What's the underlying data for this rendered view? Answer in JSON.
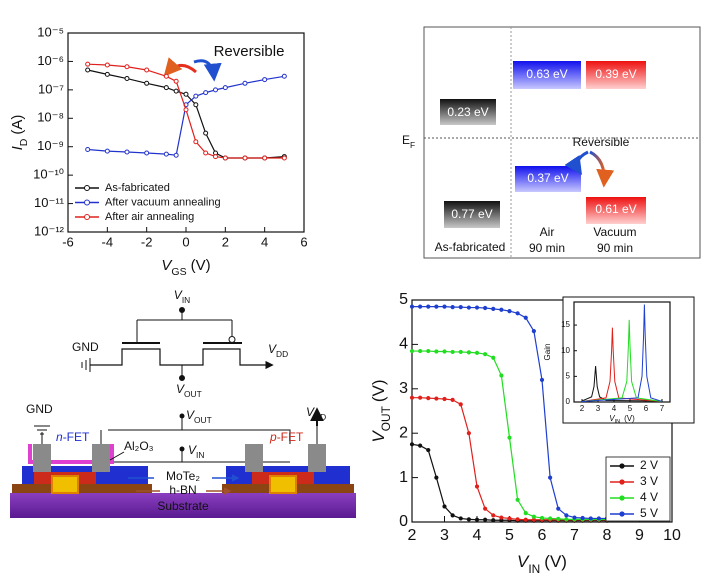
{
  "chart_data": [
    {
      "type": "line",
      "annotation": "Reversible",
      "xlabel": {
        "symbol": "V",
        "subscript": "GS",
        "unit": "(V)"
      },
      "ylabel": {
        "symbol": "I",
        "subscript": "D",
        "unit": "(A)"
      },
      "x": [
        -5,
        -4,
        -3,
        -2,
        -1,
        -0.5,
        0,
        0.5,
        1,
        1.5,
        2,
        3,
        4,
        5
      ],
      "series": [
        {
          "name": "As-fabricated",
          "color": "#111111",
          "values": [
            5e-07,
            3.5e-07,
            2.5e-07,
            1.7e-07,
            1.2e-07,
            9e-08,
            7e-08,
            3e-08,
            3e-09,
            6e-10,
            4e-10,
            4e-10,
            4e-10,
            4.5e-10
          ]
        },
        {
          "name": "After vacuum annealing",
          "color": "#2233cc",
          "values": [
            8e-10,
            7e-10,
            6.5e-10,
            6e-10,
            5.5e-10,
            5e-10,
            3e-08,
            6e-08,
            8e-08,
            1e-07,
            1.2e-07,
            1.7e-07,
            2.3e-07,
            3e-07
          ]
        },
        {
          "name": "After air annealing",
          "color": "#e0201b",
          "values": [
            8e-07,
            7.5e-07,
            6.5e-07,
            5e-07,
            3e-07,
            2e-07,
            2e-08,
            1.5e-09,
            6e-10,
            4.5e-10,
            4e-10,
            4e-10,
            4e-10,
            4e-10
          ]
        }
      ],
      "xlim": [
        -6,
        6
      ],
      "xticks": [
        -6,
        -4,
        -2,
        0,
        2,
        4,
        6
      ],
      "ylim": [
        1e-12,
        1e-05
      ],
      "y_log_scale": true,
      "yticks": [
        {
          "value": 1e-12,
          "label": "10⁻¹²"
        },
        {
          "value": 1e-11,
          "label": "10⁻¹¹"
        },
        {
          "value": 1e-10,
          "label": "10⁻¹⁰"
        },
        {
          "value": 1e-09,
          "label": "10⁻⁹"
        },
        {
          "value": 1e-08,
          "label": "10⁻⁸"
        },
        {
          "value": 1e-07,
          "label": "10⁻⁷"
        },
        {
          "value": 1e-06,
          "label": "10⁻⁶"
        },
        {
          "value": 1e-05,
          "label": "10⁻⁵"
        }
      ],
      "legend": "lower left",
      "marker_style": "open"
    },
    {
      "type": "line",
      "xlabel": {
        "symbol": "V",
        "subscript": "IN",
        "unit": "(V)"
      },
      "ylabel": {
        "symbol": "V",
        "subscript": "OUT",
        "unit": "(V)"
      },
      "x": [
        2,
        2.25,
        2.5,
        2.75,
        3,
        3.25,
        3.5,
        3.75,
        4,
        4.25,
        4.5,
        4.75,
        5,
        5.25,
        5.5,
        5.75,
        6,
        6.25,
        6.5,
        6.75,
        7,
        7.25,
        7.5,
        7.75,
        8
      ],
      "series": [
        {
          "name": "2 V",
          "color": "#111111",
          "values": [
            1.75,
            1.72,
            1.62,
            1.0,
            0.35,
            0.15,
            0.08,
            0.06,
            0.05,
            0.05,
            0.04,
            0.04,
            0.04,
            0.03,
            0.03,
            0.03,
            0.03,
            0.03,
            0.03,
            0.03,
            0.03,
            0.03,
            0.03,
            0.03,
            0.03
          ]
        },
        {
          "name": "3 V",
          "color": "#e0201b",
          "values": [
            2.8,
            2.8,
            2.79,
            2.78,
            2.77,
            2.75,
            2.65,
            2.0,
            0.8,
            0.3,
            0.15,
            0.1,
            0.08,
            0.06,
            0.05,
            0.05,
            0.05,
            0.05,
            0.05,
            0.05,
            0.05,
            0.05,
            0.05,
            0.05,
            0.05
          ]
        },
        {
          "name": "4 V",
          "color": "#22dd22",
          "values": [
            3.85,
            3.85,
            3.85,
            3.84,
            3.84,
            3.83,
            3.83,
            3.82,
            3.81,
            3.78,
            3.7,
            3.3,
            1.9,
            0.5,
            0.2,
            0.12,
            0.09,
            0.08,
            0.07,
            0.06,
            0.06,
            0.06,
            0.06,
            0.06,
            0.06
          ]
        },
        {
          "name": "5 V",
          "color": "#1f3fcf",
          "values": [
            4.85,
            4.85,
            4.85,
            4.85,
            4.85,
            4.84,
            4.84,
            4.83,
            4.83,
            4.82,
            4.8,
            4.78,
            4.75,
            4.7,
            4.6,
            4.3,
            3.2,
            1.0,
            0.3,
            0.15,
            0.1,
            0.09,
            0.08,
            0.08,
            0.08
          ]
        }
      ],
      "xlim": [
        2,
        10
      ],
      "xticks": [
        2,
        3,
        4,
        5,
        6,
        7,
        8,
        9,
        10
      ],
      "ylim": [
        0,
        5
      ],
      "yticks": [
        0,
        1,
        2,
        3,
        4,
        5
      ],
      "legend": "lower right",
      "marker_style": "filled"
    },
    {
      "type": "line",
      "xlabel": {
        "symbol": "V",
        "subscript": "IN",
        "unit": "(V)"
      },
      "ylabel": "Gain",
      "series": [
        {
          "color": "#111111",
          "x": [
            2,
            2.6,
            2.75,
            2.85,
            2.95,
            3.1,
            3.5,
            7
          ],
          "values": [
            0.2,
            1,
            3,
            7,
            3,
            1,
            0.3,
            0.2
          ]
        },
        {
          "color": "#e0201b",
          "x": [
            2,
            3.5,
            3.75,
            3.85,
            3.9,
            3.95,
            4.05,
            4.3,
            7
          ],
          "values": [
            0.1,
            0.8,
            4,
            10,
            14.5,
            10,
            4,
            0.8,
            0.1
          ]
        },
        {
          "color": "#22dd22",
          "x": [
            2,
            4.5,
            4.8,
            4.9,
            4.95,
            5.0,
            5.1,
            5.4,
            7
          ],
          "values": [
            0.1,
            0.8,
            4,
            11,
            16,
            11,
            4,
            0.8,
            0.1
          ]
        },
        {
          "color": "#1f3fcf",
          "x": [
            2,
            5.5,
            5.75,
            5.85,
            5.9,
            5.95,
            6.05,
            6.3,
            7
          ],
          "values": [
            0.1,
            0.8,
            5,
            13,
            19,
            13,
            5,
            0.8,
            0.1
          ]
        }
      ],
      "xlim": [
        1.5,
        7.5
      ],
      "xticks": [
        2,
        3,
        4,
        5,
        6,
        7
      ],
      "ylim": [
        0,
        19.5
      ],
      "yticks": [
        0,
        5,
        10,
        15
      ]
    }
  ],
  "band_diagram": {
    "fermi_level": {
      "symbol": "E",
      "subscript": "F"
    },
    "annotation": "Reversible",
    "boxes": [
      "0.23 eV",
      "0.63 eV",
      "0.39 eV",
      "0.77 eV",
      "0.37 eV",
      "0.61 eV"
    ],
    "columns": [
      [
        "As-fabricated"
      ],
      [
        "Air",
        "90 min"
      ],
      [
        "Vacuum",
        "90 min"
      ]
    ]
  },
  "circuit": {
    "schematic": {
      "input": {
        "symbol": "V",
        "subscript": "IN"
      },
      "ground": "GND",
      "supply": {
        "symbol": "V",
        "subscript": "DD"
      },
      "output": {
        "symbol": "V",
        "subscript": "OUT"
      }
    },
    "device": {
      "ground": "GND",
      "supply": {
        "symbol": "V",
        "subscript": "DD"
      },
      "output": {
        "symbol": "V",
        "subscript": "OUT"
      },
      "input": {
        "symbol": "V",
        "subscript": "IN"
      },
      "n_fet": {
        "prefix": "n",
        "suffix": "-FET"
      },
      "p_fet": {
        "prefix": "p",
        "suffix": "-FET"
      },
      "dielectric": "Al₂O₃",
      "channel": "MoTe₂",
      "insulator": "h-BN",
      "substrate": "Substrate"
    }
  }
}
